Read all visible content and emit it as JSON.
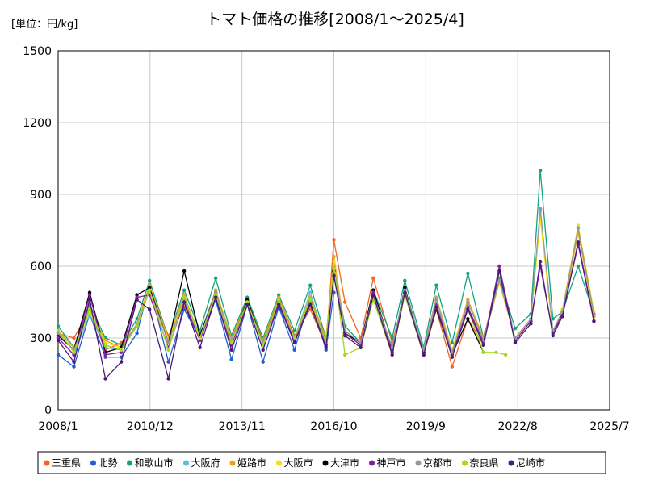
{
  "chart_data": {
    "type": "line",
    "title": "トマト価格の推移[2008/1～2025/4]",
    "unit_label": "[単位：円/kg]",
    "xlabel": "",
    "ylabel": "",
    "ylim": [
      0,
      1500
    ],
    "yticks": [
      "0",
      "300",
      "600",
      "900",
      "1200",
      "1500"
    ],
    "ytick_values": [
      0,
      300,
      600,
      900,
      1200,
      1500
    ],
    "xlim": [
      2008.0,
      2025.5
    ],
    "xticks": [
      "2008/1",
      "2010/12",
      "2013/11",
      "2016/10",
      "2019/9",
      "2022/8",
      "2025/7"
    ],
    "xtick_values": [
      2008.0,
      2010.917,
      2013.833,
      2016.75,
      2019.667,
      2022.583,
      2025.5
    ],
    "grid": true,
    "legend_position": "bottom",
    "series": [
      {
        "name": "三重県",
        "color": "#f26522",
        "x": [
          2008.0,
          2008.5,
          2009.0,
          2009.5,
          2010.0,
          2010.5,
          2010.9,
          2011.5,
          2012.0,
          2012.5,
          2013.0,
          2013.5,
          2014.0,
          2014.5,
          2015.0,
          2015.5,
          2016.0,
          2016.5,
          2016.75,
          2017.1,
          2017.6,
          2018.0,
          2018.6,
          2019.0,
          2019.6,
          2020.0,
          2020.5,
          2021.0,
          2021.5
        ],
        "values": [
          320,
          300,
          420,
          250,
          280,
          350,
          500,
          310,
          430,
          320,
          470,
          300,
          440,
          280,
          470,
          310,
          420,
          270,
          710,
          450,
          300,
          550,
          280,
          480,
          230,
          420,
          180,
          380,
          270
        ]
      },
      {
        "name": "北勢",
        "color": "#1f5fd0",
        "x": [
          2008.0,
          2008.5,
          2009.0,
          2009.5,
          2010.0,
          2010.5,
          2010.9,
          2011.5,
          2012.0,
          2012.5,
          2013.0,
          2013.5,
          2014.0,
          2014.5,
          2015.0,
          2015.5,
          2016.0,
          2016.5,
          2016.75
        ],
        "values": [
          230,
          180,
          400,
          220,
          220,
          320,
          520,
          200,
          420,
          300,
          460,
          210,
          440,
          200,
          430,
          250,
          470,
          250,
          490
        ]
      },
      {
        "name": "和歌山市",
        "color": "#14a37f",
        "x": [
          2008.0,
          2008.5,
          2009.0,
          2009.5,
          2010.0,
          2010.5,
          2010.9,
          2011.5,
          2012.0,
          2012.5,
          2013.0,
          2013.5,
          2014.0,
          2014.5,
          2015.0,
          2015.5,
          2016.0,
          2016.5,
          2016.75,
          2017.1,
          2017.6,
          2018.0,
          2018.6,
          2019.0,
          2019.6,
          2020.0,
          2020.5,
          2021.0,
          2021.5,
          2022.0,
          2022.5,
          2023.0,
          2023.3,
          2023.7,
          2024.0,
          2024.5,
          2025.0
        ],
        "values": [
          350,
          260,
          440,
          300,
          270,
          380,
          540,
          300,
          500,
          330,
          550,
          310,
          470,
          300,
          480,
          330,
          520,
          300,
          600,
          350,
          280,
          500,
          300,
          540,
          260,
          520,
          280,
          570,
          300,
          550,
          340,
          400,
          1000,
          380,
          410,
          600,
          400
        ]
      },
      {
        "name": "大阪府",
        "color": "#5bbce4",
        "x": [
          2008.0,
          2008.5,
          2009.0,
          2009.5,
          2010.0,
          2010.5,
          2010.9,
          2011.5,
          2012.0,
          2012.5,
          2013.0,
          2013.5,
          2014.0,
          2014.5,
          2015.0,
          2015.5,
          2016.0,
          2016.5,
          2016.75
        ],
        "values": [
          300,
          230,
          400,
          260,
          250,
          350,
          510,
          280,
          470,
          310,
          500,
          280,
          450,
          270,
          450,
          300,
          490,
          280,
          560
        ]
      },
      {
        "name": "姫路市",
        "color": "#e8a317",
        "x": [
          2008.0,
          2008.5,
          2009.0,
          2009.5,
          2010.0,
          2010.5,
          2010.9,
          2011.5,
          2012.0,
          2012.5,
          2013.0,
          2013.5,
          2014.0,
          2014.5,
          2015.0,
          2015.5,
          2016.0,
          2016.5,
          2016.75,
          2017.1,
          2017.6,
          2018.0,
          2018.6,
          2019.0,
          2019.6,
          2020.0,
          2020.5,
          2021.0,
          2021.5,
          2022.0,
          2022.5,
          2023.0,
          2023.3,
          2023.7,
          2024.0,
          2024.5,
          2025.0
        ],
        "values": [
          330,
          260,
          420,
          290,
          260,
          360,
          520,
          300,
          480,
          300,
          500,
          300,
          460,
          290,
          470,
          300,
          470,
          300,
          640,
          330,
          280,
          480,
          260,
          500,
          250,
          470,
          250,
          460,
          300,
          540,
          300,
          380,
          830,
          330,
          400,
          740,
          390
        ]
      },
      {
        "name": "大阪市",
        "color": "#f2e10c",
        "x": [
          2008.0,
          2008.5,
          2009.0,
          2009.5,
          2010.0,
          2010.5,
          2010.9,
          2011.5,
          2012.0,
          2012.5,
          2013.0,
          2013.5,
          2014.0,
          2014.5,
          2015.0,
          2015.5,
          2016.0,
          2016.5,
          2016.75,
          2017.1,
          2017.6,
          2018.0,
          2018.6,
          2019.0,
          2019.6,
          2020.0,
          2020.5,
          2021.0,
          2021.5,
          2022.0,
          2022.5,
          2023.0,
          2023.3,
          2023.7,
          2024.0,
          2024.5,
          2025.0
        ],
        "values": [
          320,
          250,
          410,
          280,
          260,
          350,
          500,
          290,
          460,
          300,
          490,
          290,
          450,
          280,
          460,
          300,
          460,
          290,
          620,
          320,
          270,
          470,
          260,
          490,
          250,
          460,
          250,
          450,
          290,
          530,
          300,
          370,
          800,
          320,
          420,
          770,
          410
        ]
      },
      {
        "name": "大津市",
        "color": "#000000",
        "x": [
          2008.0,
          2008.5,
          2009.0,
          2009.5,
          2010.0,
          2010.5,
          2010.9,
          2011.5,
          2012.0,
          2012.5,
          2013.0,
          2013.5,
          2014.0,
          2014.5,
          2015.0,
          2015.5,
          2016.0,
          2016.5,
          2016.75,
          2017.1,
          2017.6,
          2018.0,
          2018.6,
          2019.0,
          2019.6,
          2020.0,
          2020.5,
          2021.0,
          2021.5
        ],
        "values": [
          310,
          250,
          490,
          240,
          260,
          480,
          510,
          280,
          580,
          310,
          490,
          280,
          460,
          280,
          460,
          300,
          450,
          280,
          580,
          320,
          280,
          500,
          250,
          510,
          240,
          420,
          230,
          380,
          240
        ]
      },
      {
        "name": "神戸市",
        "color": "#8b1aa8",
        "x": [
          2008.0,
          2008.5,
          2009.0,
          2009.5,
          2010.0,
          2010.5,
          2010.9,
          2011.5,
          2012.0,
          2012.5,
          2013.0,
          2013.5,
          2014.0,
          2014.5,
          2015.0,
          2015.5,
          2016.0,
          2016.5,
          2016.75,
          2017.1,
          2017.6,
          2018.0,
          2018.6,
          2019.0,
          2019.6,
          2020.0,
          2020.5,
          2021.0,
          2021.5,
          2022.0,
          2022.5,
          2023.0,
          2023.3,
          2023.7,
          2024.0,
          2024.5,
          2025.0
        ],
        "values": [
          300,
          230,
          480,
          230,
          240,
          470,
          480,
          260,
          450,
          290,
          470,
          270,
          450,
          270,
          450,
          290,
          460,
          270,
          570,
          320,
          270,
          490,
          240,
          500,
          230,
          440,
          230,
          430,
          280,
          600,
          290,
          370,
          600,
          320,
          400,
          690,
          370
        ]
      },
      {
        "name": "京都市",
        "color": "#8c9aa8",
        "x": [
          2008.0,
          2008.5,
          2009.0,
          2009.5,
          2010.0,
          2010.5,
          2010.9,
          2011.5,
          2012.0,
          2012.5,
          2013.0,
          2013.5,
          2014.0,
          2014.5,
          2015.0,
          2015.5,
          2016.0,
          2016.5,
          2016.75,
          2017.1,
          2017.6,
          2018.0,
          2018.6,
          2019.0,
          2019.6,
          2020.0,
          2020.5,
          2021.0,
          2021.5,
          2022.0,
          2022.5,
          2023.0,
          2023.3,
          2023.7,
          2024.0,
          2024.5,
          2025.0
        ],
        "values": [
          320,
          250,
          420,
          270,
          250,
          360,
          500,
          280,
          460,
          300,
          490,
          290,
          450,
          280,
          460,
          300,
          460,
          290,
          600,
          330,
          280,
          480,
          260,
          500,
          250,
          460,
          240,
          450,
          290,
          540,
          300,
          380,
          840,
          330,
          410,
          760,
          400
        ]
      },
      {
        "name": "奈良県",
        "color": "#a6d81e",
        "x": [
          2008.0,
          2008.5,
          2009.0,
          2009.5,
          2010.0,
          2010.5,
          2010.9,
          2011.5,
          2012.0,
          2012.5,
          2013.0,
          2013.5,
          2014.0,
          2014.5,
          2015.0,
          2015.5,
          2016.0,
          2016.5,
          2016.75,
          2017.1,
          2017.6,
          2018.0,
          2018.6,
          2019.0,
          2019.6,
          2020.0,
          2020.5,
          2021.0,
          2021.5,
          2021.9,
          2022.2
        ],
        "values": [
          330,
          240,
          420,
          270,
          250,
          350,
          500,
          250,
          470,
          300,
          480,
          280,
          450,
          270,
          460,
          300,
          460,
          280,
          600,
          230,
          260,
          460,
          230,
          480,
          230,
          430,
          220,
          420,
          240,
          240,
          230
        ]
      },
      {
        "name": "尼崎市",
        "color": "#4b1a78",
        "x": [
          2008.0,
          2008.5,
          2009.0,
          2009.5,
          2010.0,
          2010.5,
          2010.9,
          2011.5,
          2012.0,
          2012.5,
          2013.0,
          2013.5,
          2014.0,
          2014.5,
          2015.0,
          2015.5,
          2016.0,
          2016.5,
          2016.75,
          2017.1,
          2017.6,
          2018.0,
          2018.6,
          2019.0,
          2019.6,
          2020.0,
          2020.5,
          2021.0,
          2021.5,
          2022.0,
          2022.5,
          2023.0,
          2023.3,
          2023.7,
          2024.0,
          2024.5,
          2025.0
        ],
        "values": [
          290,
          200,
          460,
          130,
          200,
          460,
          420,
          130,
          450,
          260,
          470,
          250,
          440,
          250,
          440,
          280,
          440,
          260,
          560,
          310,
          260,
          480,
          230,
          490,
          230,
          430,
          220,
          420,
          270,
          580,
          280,
          360,
          620,
          310,
          390,
          700,
          370
        ]
      }
    ]
  }
}
